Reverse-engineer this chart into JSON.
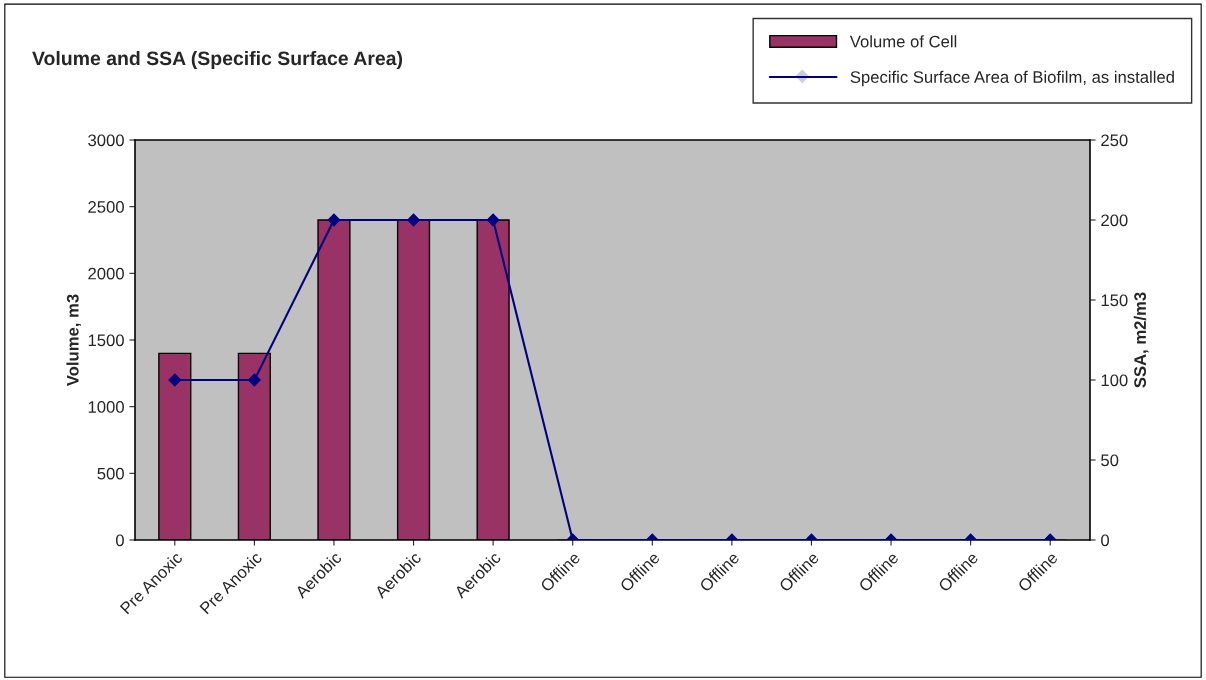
{
  "chart_data": {
    "type": "bar",
    "title": "Volume and SSA (Specific Surface Area)",
    "ylabel": "Volume, m3",
    "y2label": "SSA, m2/m3",
    "categories": [
      "Pre Anoxic",
      "Pre Anoxic",
      "Aerobic",
      "Aerobic",
      "Aerobic",
      "Offline",
      "Offline",
      "Offline",
      "Offline",
      "Offline",
      "Offline",
      "Offline"
    ],
    "series": [
      {
        "name": "Volume of Cell",
        "type": "bar",
        "color": "#993366",
        "values": [
          1400,
          1400,
          2400,
          2400,
          2400,
          0,
          0,
          0,
          0,
          0,
          0,
          0
        ]
      },
      {
        "name": "Specific Surface Area of Biofilm, as installed",
        "type": "line",
        "axis": "y2",
        "color": "#000080",
        "marker": "diamond",
        "values": [
          100,
          100,
          200,
          200,
          200,
          0,
          0,
          0,
          0,
          0,
          0,
          0
        ]
      }
    ],
    "ylim": [
      0,
      3000
    ],
    "yticks": [
      0,
      500,
      1000,
      1500,
      2000,
      2500,
      3000
    ],
    "y2lim": [
      0,
      250
    ],
    "y2ticks": [
      0,
      50,
      100,
      150,
      200,
      250
    ],
    "grid": false,
    "legend": "top right"
  }
}
